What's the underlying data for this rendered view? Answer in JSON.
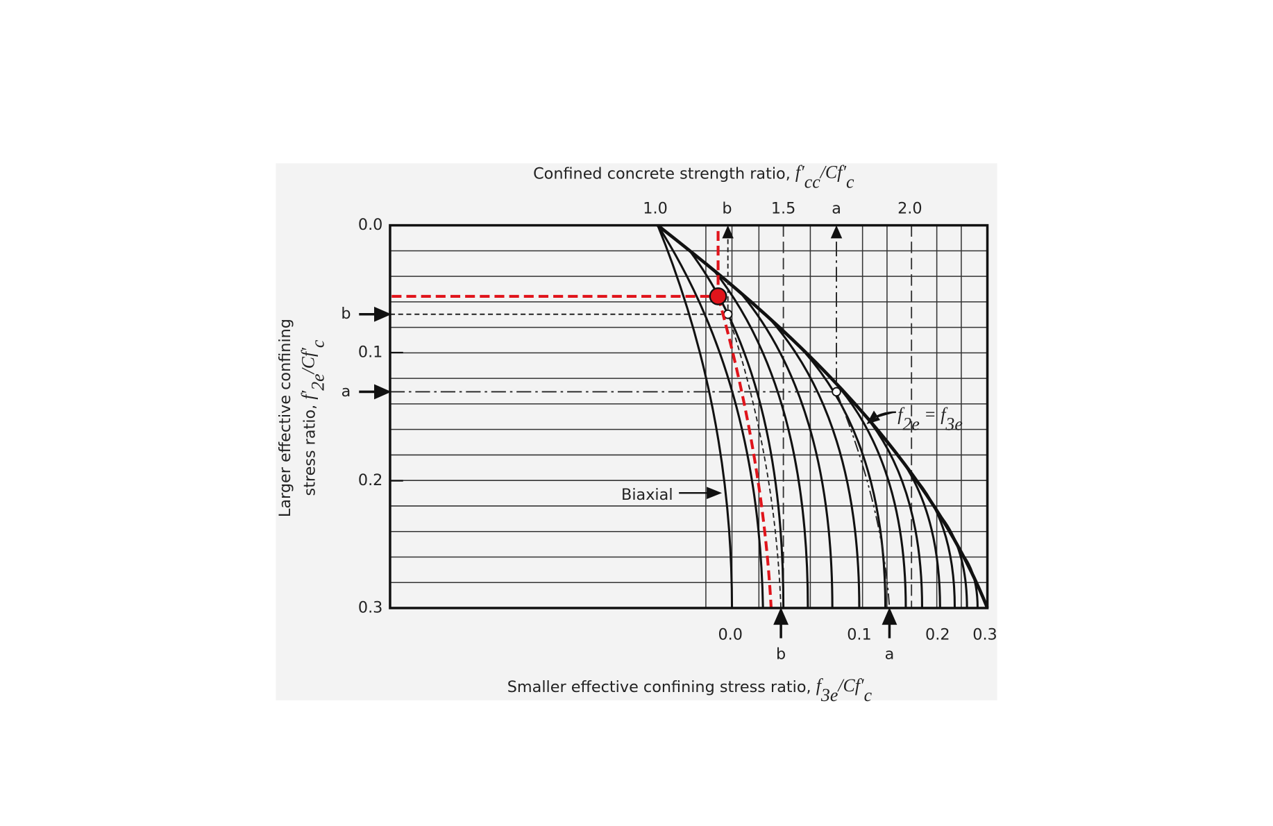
{
  "title": {
    "text": "Confined concrete strength ratio, ",
    "symbol": [
      "f′",
      "cc",
      "/Cf′",
      "c"
    ]
  },
  "left_label": {
    "line1": "Larger effective confining",
    "line2": "stress ratio, ",
    "symbol": [
      "f′",
      "2e",
      "/Cf′",
      "c"
    ]
  },
  "bottom_label": {
    "text": "Smaller effective confining stress ratio, ",
    "symbol": [
      "f",
      "3e",
      "/Cf′",
      "c"
    ]
  },
  "top_ticks": [
    "1.0",
    "b",
    "1.5",
    "a",
    "2.0"
  ],
  "left_ticks": [
    "0.0",
    "0.1",
    "0.2",
    "0.3"
  ],
  "left_markers": [
    "b",
    "a"
  ],
  "bottom_ticks": [
    "0.0",
    "0.1",
    "0.2",
    "0.3"
  ],
  "bottom_markers": [
    "b",
    "a"
  ],
  "annotations": {
    "biaxial": "Biaxial",
    "envelope": [
      "f",
      "2e",
      " = f",
      "3e"
    ]
  }
}
